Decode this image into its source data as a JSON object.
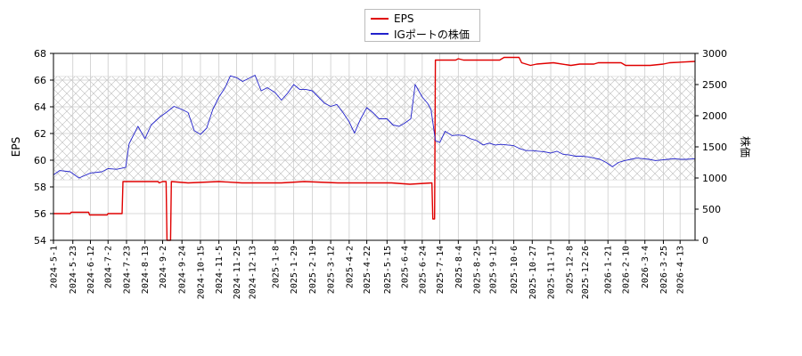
{
  "legend": {
    "eps_label": "EPS",
    "price_label": "IGポートの株価"
  },
  "colors": {
    "eps": "#e00000",
    "price": "#2222cc",
    "grid": "#cccccc",
    "hatch": "#bbbbbb"
  },
  "chart_data": {
    "type": "line",
    "title": "",
    "xlabel": "",
    "ylabel_left": "EPS",
    "ylabel_right": "株価",
    "ylim_left": [
      54,
      68
    ],
    "ylim_right": [
      0,
      3000
    ],
    "yticks_left": [
      54,
      56,
      58,
      60,
      62,
      64,
      66,
      68
    ],
    "yticks_right": [
      0,
      500,
      1000,
      1500,
      2000,
      2500,
      3000
    ],
    "x_range": [
      "2024-5-1",
      "2026-4-30"
    ],
    "x_tick_labels": [
      "2024-5-1",
      "2024-5-23",
      "2024-6-12",
      "2024-7-2",
      "2024-7-23",
      "2024-8-13",
      "2024-9-2",
      "2024-9-24",
      "2024-10-15",
      "2024-11-5",
      "2024-11-25",
      "2024-12-13",
      "2025-1-8",
      "2025-1-29",
      "2025-2-19",
      "2025-3-12",
      "2025-4-2",
      "2025-4-22",
      "2025-5-15",
      "2025-6-4",
      "2025-6-24",
      "2025-7-14",
      "2025-8-4",
      "2025-8-25",
      "2025-9-12",
      "2025-10-6",
      "2025-10-27",
      "2025-11-17",
      "2025-12-8",
      "2025-12-26",
      "2026-1-21",
      "2026-2-10",
      "2026-3-4",
      "2026-3-25",
      "2026-4-13"
    ],
    "shaded_band_right": [
      970,
      2630
    ],
    "grid": true,
    "legend_position": "top-center",
    "series": [
      {
        "name": "EPS",
        "axis": "left",
        "points": [
          [
            "2024-5-1",
            56.0
          ],
          [
            "2024-5-20",
            56.0
          ],
          [
            "2024-5-21",
            56.1
          ],
          [
            "2024-6-10",
            56.1
          ],
          [
            "2024-6-11",
            55.9
          ],
          [
            "2024-7-1",
            55.9
          ],
          [
            "2024-7-2",
            56.0
          ],
          [
            "2024-7-18",
            56.0
          ],
          [
            "2024-7-19",
            58.4
          ],
          [
            "2024-8-28",
            58.4
          ],
          [
            "2024-8-29",
            58.3
          ],
          [
            "2024-9-2",
            58.4
          ],
          [
            "2024-9-6",
            58.4
          ],
          [
            "2024-9-7",
            54.0
          ],
          [
            "2024-9-11",
            54.0
          ],
          [
            "2024-9-12",
            58.4
          ],
          [
            "2024-10-1",
            58.3
          ],
          [
            "2024-11-5",
            58.4
          ],
          [
            "2024-12-1",
            58.3
          ],
          [
            "2025-1-15",
            58.3
          ],
          [
            "2025-2-10",
            58.4
          ],
          [
            "2025-3-20",
            58.3
          ],
          [
            "2025-4-25",
            58.3
          ],
          [
            "2025-5-20",
            58.3
          ],
          [
            "2025-6-10",
            58.2
          ],
          [
            "2025-7-5",
            58.3
          ],
          [
            "2025-7-6",
            55.6
          ],
          [
            "2025-7-8",
            55.6
          ],
          [
            "2025-7-9",
            67.5
          ],
          [
            "2025-8-1",
            67.5
          ],
          [
            "2025-8-4",
            67.6
          ],
          [
            "2025-8-10",
            67.5
          ],
          [
            "2025-9-20",
            67.5
          ],
          [
            "2025-9-25",
            67.7
          ],
          [
            "2025-10-12",
            67.7
          ],
          [
            "2025-10-15",
            67.3
          ],
          [
            "2025-10-25",
            67.1
          ],
          [
            "2025-11-1",
            67.2
          ],
          [
            "2025-11-20",
            67.3
          ],
          [
            "2025-12-10",
            67.1
          ],
          [
            "2025-12-20",
            67.2
          ],
          [
            "2026-1-5",
            67.2
          ],
          [
            "2026-1-10",
            67.3
          ],
          [
            "2026-2-5",
            67.3
          ],
          [
            "2026-2-10",
            67.1
          ],
          [
            "2026-3-10",
            67.1
          ],
          [
            "2026-3-25",
            67.2
          ],
          [
            "2026-4-1",
            67.3
          ],
          [
            "2026-4-30",
            67.4
          ]
        ]
      },
      {
        "name": "IGポートの株価",
        "axis": "right",
        "points": [
          [
            "2024-5-1",
            1050
          ],
          [
            "2024-5-8",
            1120
          ],
          [
            "2024-5-20",
            1100
          ],
          [
            "2024-5-30",
            1000
          ],
          [
            "2024-6-12",
            1080
          ],
          [
            "2024-6-25",
            1100
          ],
          [
            "2024-7-2",
            1150
          ],
          [
            "2024-7-12",
            1140
          ],
          [
            "2024-7-22",
            1170
          ],
          [
            "2024-7-26",
            1550
          ],
          [
            "2024-8-5",
            1830
          ],
          [
            "2024-8-13",
            1630
          ],
          [
            "2024-8-20",
            1850
          ],
          [
            "2024-8-30",
            1980
          ],
          [
            "2024-9-6",
            2050
          ],
          [
            "2024-9-15",
            2150
          ],
          [
            "2024-9-24",
            2100
          ],
          [
            "2024-10-1",
            2050
          ],
          [
            "2024-10-8",
            1760
          ],
          [
            "2024-10-15",
            1700
          ],
          [
            "2024-10-22",
            1800
          ],
          [
            "2024-10-29",
            2100
          ],
          [
            "2024-11-5",
            2300
          ],
          [
            "2024-11-12",
            2450
          ],
          [
            "2024-11-18",
            2640
          ],
          [
            "2024-11-25",
            2610
          ],
          [
            "2024-12-2",
            2550
          ],
          [
            "2024-12-9",
            2600
          ],
          [
            "2024-12-16",
            2650
          ],
          [
            "2024-12-23",
            2400
          ],
          [
            "2024-12-30",
            2450
          ],
          [
            "2025-1-8",
            2370
          ],
          [
            "2025-1-15",
            2250
          ],
          [
            "2025-1-22",
            2360
          ],
          [
            "2025-1-29",
            2500
          ],
          [
            "2025-2-5",
            2420
          ],
          [
            "2025-2-12",
            2420
          ],
          [
            "2025-2-19",
            2400
          ],
          [
            "2025-2-26",
            2300
          ],
          [
            "2025-3-5",
            2200
          ],
          [
            "2025-3-12",
            2150
          ],
          [
            "2025-3-19",
            2180
          ],
          [
            "2025-3-26",
            2050
          ],
          [
            "2025-4-2",
            1900
          ],
          [
            "2025-4-8",
            1720
          ],
          [
            "2025-4-15",
            1950
          ],
          [
            "2025-4-22",
            2130
          ],
          [
            "2025-4-29",
            2050
          ],
          [
            "2025-5-6",
            1950
          ],
          [
            "2025-5-15",
            1950
          ],
          [
            "2025-5-22",
            1850
          ],
          [
            "2025-5-29",
            1830
          ],
          [
            "2025-6-4",
            1880
          ],
          [
            "2025-6-11",
            1950
          ],
          [
            "2025-6-16",
            2500
          ],
          [
            "2025-6-24",
            2300
          ],
          [
            "2025-6-30",
            2200
          ],
          [
            "2025-7-4",
            2100
          ],
          [
            "2025-7-9",
            1600
          ],
          [
            "2025-7-14",
            1570
          ],
          [
            "2025-7-20",
            1750
          ],
          [
            "2025-7-28",
            1680
          ],
          [
            "2025-8-4",
            1690
          ],
          [
            "2025-8-11",
            1680
          ],
          [
            "2025-8-18",
            1630
          ],
          [
            "2025-8-25",
            1600
          ],
          [
            "2025-9-1",
            1530
          ],
          [
            "2025-9-8",
            1560
          ],
          [
            "2025-9-15",
            1530
          ],
          [
            "2025-9-22",
            1540
          ],
          [
            "2025-9-29",
            1530
          ],
          [
            "2025-10-6",
            1520
          ],
          [
            "2025-10-13",
            1470
          ],
          [
            "2025-10-20",
            1440
          ],
          [
            "2025-10-27",
            1440
          ],
          [
            "2025-11-3",
            1430
          ],
          [
            "2025-11-10",
            1420
          ],
          [
            "2025-11-17",
            1400
          ],
          [
            "2025-11-24",
            1430
          ],
          [
            "2025-12-1",
            1380
          ],
          [
            "2025-12-8",
            1370
          ],
          [
            "2025-12-15",
            1350
          ],
          [
            "2025-12-22",
            1350
          ],
          [
            "2025-12-29",
            1340
          ],
          [
            "2026-1-5",
            1320
          ],
          [
            "2026-1-12",
            1300
          ],
          [
            "2026-1-19",
            1250
          ],
          [
            "2026-1-26",
            1180
          ],
          [
            "2026-2-2",
            1250
          ],
          [
            "2026-2-9",
            1280
          ],
          [
            "2026-2-16",
            1300
          ],
          [
            "2026-2-23",
            1320
          ],
          [
            "2026-3-2",
            1310
          ],
          [
            "2026-3-9",
            1300
          ],
          [
            "2026-3-16",
            1280
          ],
          [
            "2026-3-23",
            1290
          ],
          [
            "2026-3-30",
            1300
          ],
          [
            "2026-4-6",
            1310
          ],
          [
            "2026-4-13",
            1300
          ],
          [
            "2026-4-20",
            1300
          ],
          [
            "2026-4-30",
            1310
          ]
        ]
      }
    ]
  }
}
